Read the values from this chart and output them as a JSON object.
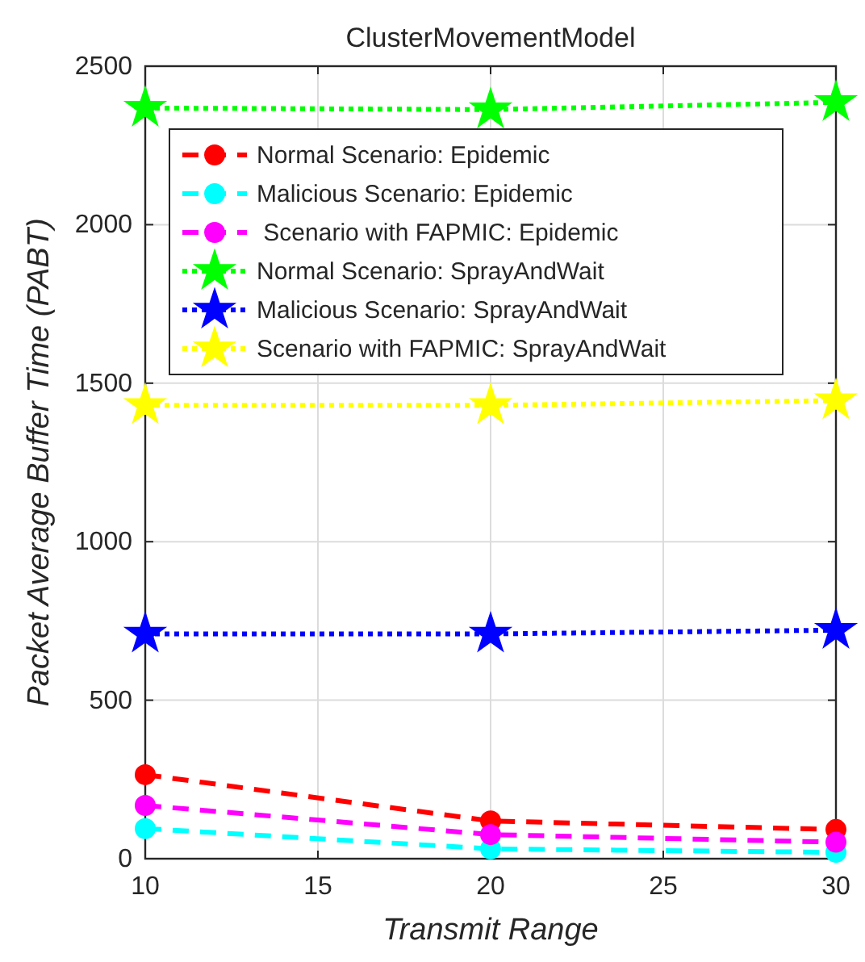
{
  "chart_data": {
    "type": "line",
    "title": "ClusterMovementModel",
    "xlabel": "Transmit Range",
    "ylabel": "Packet Average Buffer Time (PABT)",
    "x": [
      10,
      20,
      30
    ],
    "xlim": [
      10,
      30
    ],
    "xticks": [
      10,
      15,
      20,
      25,
      30
    ],
    "ylim": [
      0,
      2500
    ],
    "yticks": [
      0,
      500,
      1000,
      1500,
      2000,
      2500
    ],
    "grid": true,
    "legend": "top left",
    "series": [
      {
        "name": "Normal Scenario: Epidemic",
        "color": "#ff0000",
        "values": [
          265,
          119,
          92
        ],
        "marker": "circle",
        "line_style": "dashed"
      },
      {
        "name": "Malicious Scenario: Epidemic",
        "color": "#00ffff",
        "values": [
          95,
          31,
          20
        ],
        "marker": "circle",
        "line_style": "dashed"
      },
      {
        "name": " Scenario with FAPMIC: Epidemic",
        "color": "#ff00ff",
        "values": [
          168,
          76,
          52
        ],
        "marker": "circle",
        "line_style": "dashed"
      },
      {
        "name": "Normal Scenario: SprayAndWait",
        "color": "#00ff00",
        "values": [
          2368,
          2363,
          2386
        ],
        "marker": "star",
        "line_style": "dotted"
      },
      {
        "name": "Malicious Scenario: SprayAndWait",
        "color": "#0000ff",
        "values": [
          709,
          709,
          721
        ],
        "marker": "star",
        "line_style": "dotted"
      },
      {
        "name": "Scenario with FAPMIC: SprayAndWait",
        "color": "#ffff00",
        "values": [
          1430,
          1430,
          1445
        ],
        "marker": "star",
        "line_style": "dotted"
      }
    ]
  }
}
